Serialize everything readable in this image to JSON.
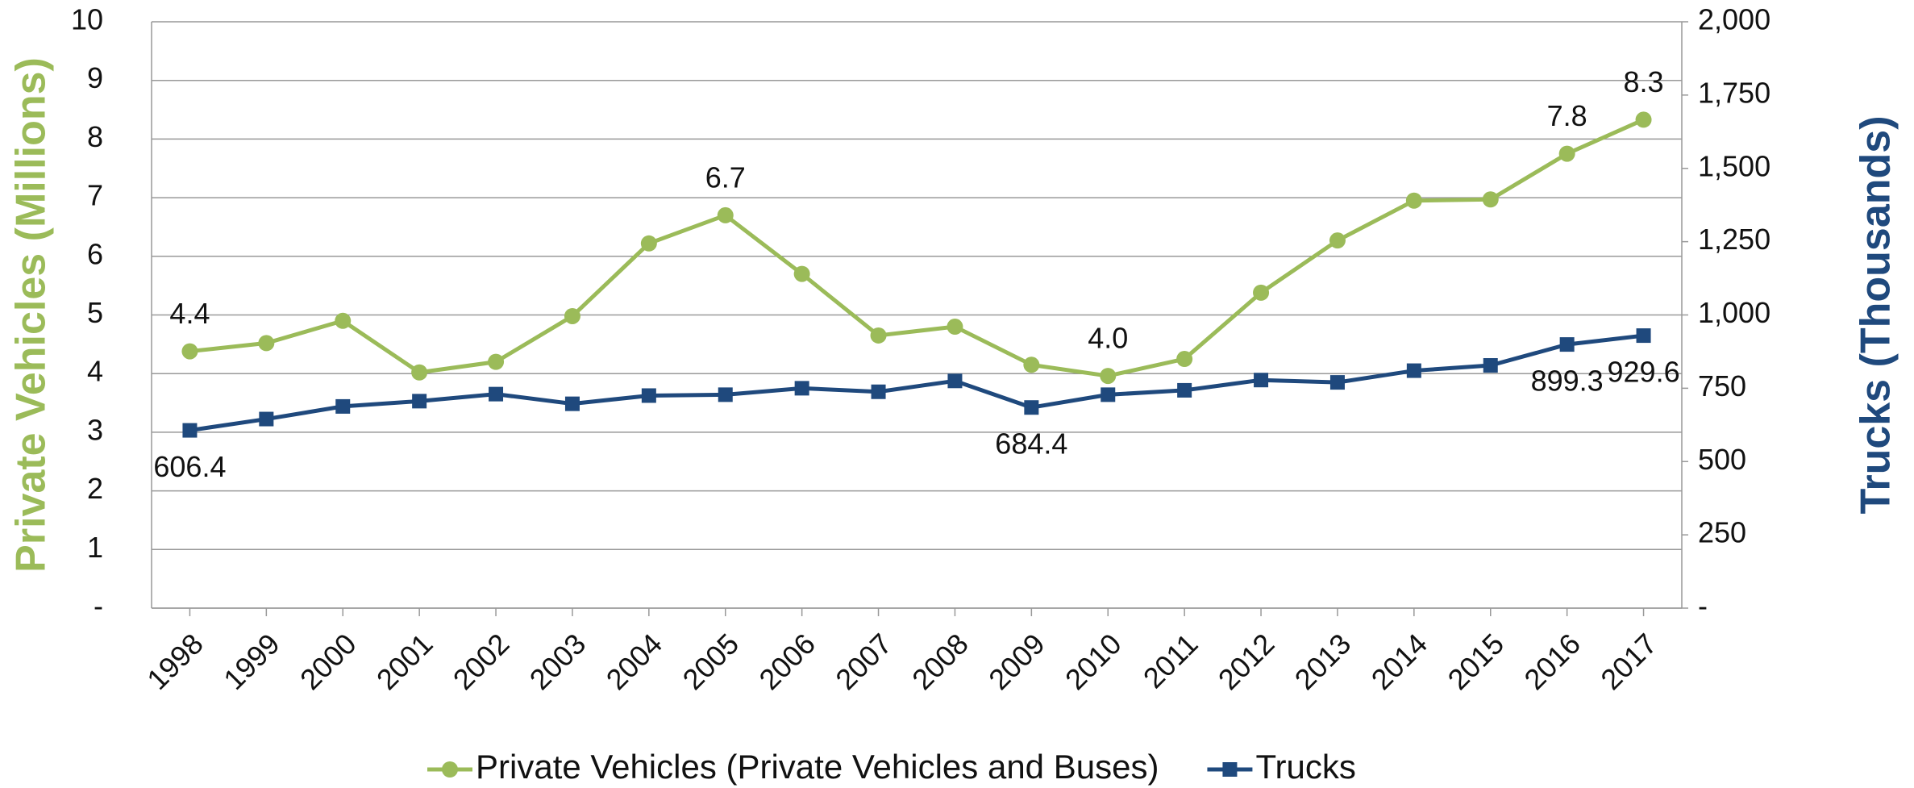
{
  "chart_data": {
    "type": "line",
    "y_label": "Private Vehicles (Millions)",
    "y2_label": "Trucks (Thousands)",
    "categories": [
      "1998",
      "1999",
      "2000",
      "2001",
      "2002",
      "2003",
      "2004",
      "2005",
      "2006",
      "2007",
      "2008",
      "2009",
      "2010",
      "2011",
      "2012",
      "2013",
      "2014",
      "2015",
      "2016",
      "2017"
    ],
    "series": [
      {
        "name": "Private Vehicles (Private Vehicles and Buses)",
        "color": "#9bbb59",
        "marker": "circle",
        "values": [
          4.38,
          4.52,
          4.9,
          4.02,
          4.2,
          4.98,
          6.22,
          6.7,
          5.7,
          4.65,
          4.8,
          4.15,
          3.96,
          4.25,
          5.38,
          6.27,
          6.95,
          6.97,
          7.75,
          8.33
        ],
        "value_labels": [
          "4.4",
          null,
          null,
          null,
          null,
          null,
          null,
          "6.7",
          null,
          null,
          null,
          null,
          "4.0",
          null,
          null,
          null,
          null,
          null,
          "7.8",
          "8.3"
        ]
      },
      {
        "name": "Trucks",
        "color": "#1f497d",
        "marker": "square",
        "axis": "y2",
        "values": [
          606.4,
          645,
          688,
          706,
          730,
          697,
          725,
          728,
          750,
          738,
          775,
          684.4,
          728,
          743,
          778,
          770,
          810,
          828,
          899.3,
          929.6
        ],
        "value_labels": [
          "606.4",
          null,
          null,
          null,
          null,
          null,
          null,
          null,
          null,
          null,
          null,
          "684.4",
          null,
          null,
          null,
          null,
          null,
          null,
          "899.3",
          "929.6"
        ]
      }
    ],
    "ylim": [
      0,
      10
    ],
    "yticks": [
      {
        "value": 0,
        "label": "-"
      },
      1,
      2,
      3,
      4,
      5,
      6,
      7,
      8,
      9,
      10
    ],
    "y2lim": [
      0,
      2000
    ],
    "y2ticks": [
      {
        "value": 0,
        "label": "-"
      },
      250,
      500,
      750,
      {
        "value": 1000,
        "label": "1,000"
      },
      {
        "value": 1250,
        "label": "1,250"
      },
      {
        "value": 1500,
        "label": "1,500"
      },
      {
        "value": 1750,
        "label": "1,750"
      },
      {
        "value": 2000,
        "label": "2,000"
      }
    ],
    "grid": true,
    "legend": "bottom"
  }
}
